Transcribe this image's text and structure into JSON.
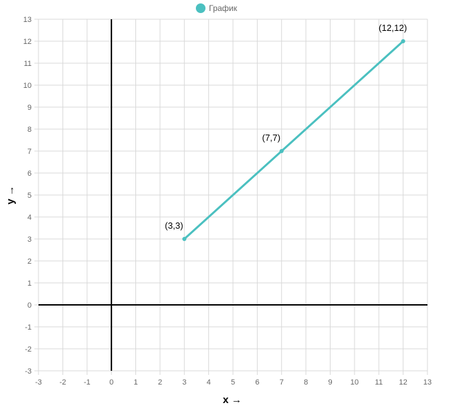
{
  "chart_data": {
    "type": "line",
    "xlabel": "x →",
    "ylabel": "y →",
    "xlim": [
      -3,
      13
    ],
    "ylim": [
      -3,
      13
    ],
    "xticks": [
      -3,
      -2,
      -1,
      0,
      1,
      2,
      3,
      4,
      5,
      6,
      7,
      8,
      9,
      10,
      11,
      12,
      13
    ],
    "yticks": [
      -3,
      -2,
      -1,
      0,
      1,
      2,
      3,
      4,
      5,
      6,
      7,
      8,
      9,
      10,
      11,
      12,
      13
    ],
    "grid": true,
    "legend_position": "top-center",
    "series": [
      {
        "name": "График",
        "color": "#4bc0c0",
        "points": [
          {
            "x": 3,
            "y": 3,
            "label": "(3,3)"
          },
          {
            "x": 7,
            "y": 7,
            "label": "(7,7)"
          },
          {
            "x": 12,
            "y": 12,
            "label": "(12,12)"
          }
        ]
      }
    ]
  }
}
